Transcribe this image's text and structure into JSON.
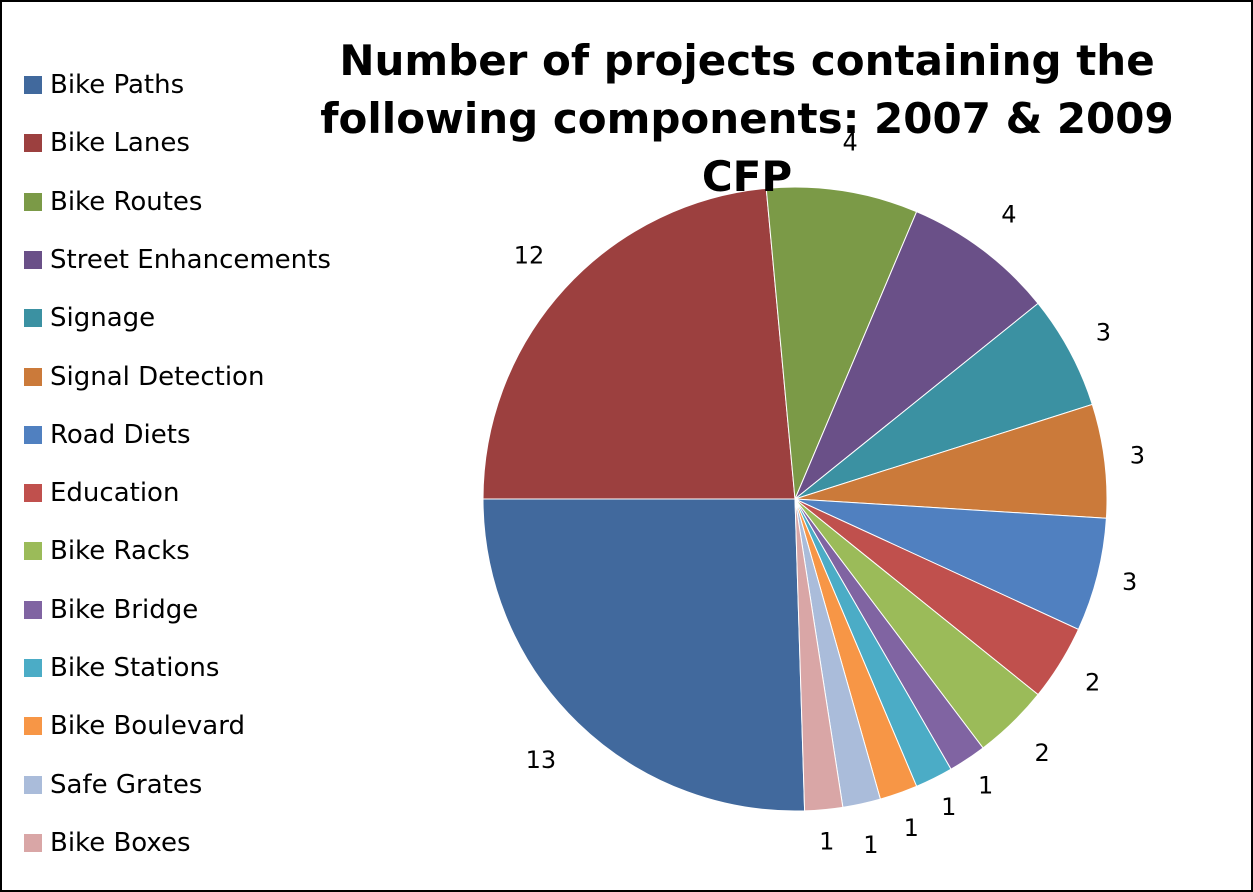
{
  "chart_data": {
    "type": "pie",
    "title_lines": [
      "Number of projects containing the",
      "following components: 2007 & 2009 CFP"
    ],
    "legend_position": "left",
    "categories": [
      "Bike Paths",
      "Bike Lanes",
      "Bike Routes",
      "Street Enhancements",
      "Signage",
      "Signal Detection",
      "Road Diets",
      "Education",
      "Bike Racks",
      "Bike Bridge",
      "Bike Stations",
      "Bike Boulevard",
      "Safe Grates",
      "Bike Boxes"
    ],
    "values": [
      13,
      12,
      4,
      4,
      3,
      3,
      3,
      2,
      2,
      1,
      1,
      1,
      1,
      1
    ],
    "colors": [
      "#41699D",
      "#9C403F",
      "#7B9A47",
      "#6A5088",
      "#3B91A2",
      "#CB7A3A",
      "#5080C0",
      "#C0504D",
      "#9BBB59",
      "#8064A2",
      "#4BACC6",
      "#F79646",
      "#AABCDA",
      "#D9A6A6"
    ],
    "labels": [
      "13",
      "12",
      "4",
      "4",
      "3",
      "3",
      "3",
      "2",
      "2",
      "1",
      "1",
      "1",
      "1",
      "1"
    ]
  }
}
